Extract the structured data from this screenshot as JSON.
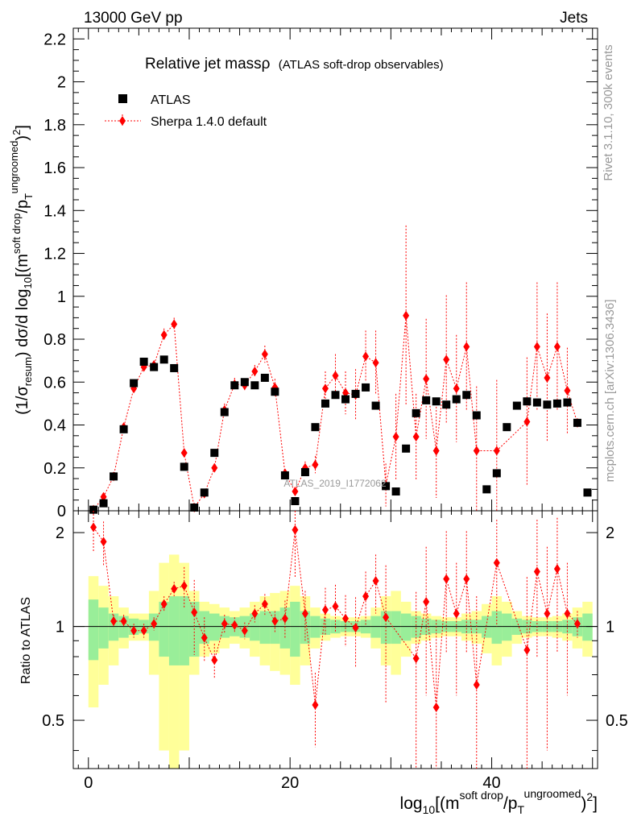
{
  "header": {
    "left": "13000 GeV pp",
    "right": "Jets"
  },
  "side_labels": {
    "rivet": "Rivet 3.1.10,  300k events",
    "mcplots": "mcplots.cern.ch [arXiv:1306.3436]"
  },
  "watermark": "ATLAS_2019_I1772062",
  "chart_data": {
    "type": "scatter",
    "title": "Relative jet massρ",
    "subtitle": "(ATLAS soft-drop observables)",
    "xlim": [
      -1.5,
      50.5
    ],
    "main_ylim": [
      0,
      2.25
    ],
    "ratio_ylim": [
      0.35,
      2.35
    ],
    "x_ticks": [
      "0",
      "20",
      "40"
    ],
    "main_y_ticks": [
      "0",
      "0.2",
      "0.4",
      "0.6",
      "0.8",
      "1",
      "1.2",
      "1.4",
      "1.6",
      "1.8",
      "2",
      "2.2"
    ],
    "ratio_y_ticks": [
      "0.5",
      "1",
      "2"
    ],
    "ylabel_main": "(1/σresum) dσ/d log10[(m soft drop/pT ungroomed)2]",
    "ylabel_ratio": "Ratio to ATLAS",
    "xlabel": "log10[(m soft drop/pT ungroomed)2]",
    "legend": [
      {
        "name": "ATLAS",
        "marker": "square",
        "color": "#000000"
      },
      {
        "name": "Sherpa 1.4.0 default",
        "marker": "diamond",
        "color": "#ff0000"
      }
    ],
    "x": [
      0.5,
      1.5,
      2.5,
      3.5,
      4.5,
      5.5,
      6.5,
      7.5,
      8.5,
      9.5,
      10.5,
      11.5,
      12.5,
      13.5,
      14.5,
      15.5,
      16.5,
      17.5,
      18.5,
      19.5,
      20.5,
      21.5,
      22.5,
      23.5,
      24.5,
      25.5,
      26.5,
      27.5,
      28.5,
      29.5,
      30.5,
      31.5,
      32.5,
      33.5,
      34.5,
      35.5,
      36.5,
      37.5,
      38.5,
      39.5,
      40.5,
      41.5,
      42.5,
      43.5,
      44.5,
      45.5,
      46.5,
      47.5,
      48.5,
      49.5
    ],
    "series": [
      {
        "name": "ATLAS",
        "values": [
          0.005,
          0.035,
          0.16,
          0.38,
          0.595,
          0.695,
          0.67,
          0.705,
          0.665,
          0.205,
          0.015,
          0.085,
          0.27,
          0.46,
          0.585,
          0.6,
          0.585,
          0.62,
          0.555,
          0.165,
          0.045,
          0.18,
          0.39,
          0.5,
          0.54,
          0.52,
          0.545,
          0.575,
          0.49,
          0.115,
          0.09,
          0.29,
          0.455,
          0.515,
          0.51,
          0.495,
          0.52,
          0.54,
          0.445,
          0.1,
          0.175,
          0.39,
          0.49,
          0.51,
          0.505,
          0.495,
          0.5,
          0.505,
          0.41,
          0.085
        ]
      },
      {
        "name": "Sherpa 1.4.0 default",
        "x": [
          0.5,
          1.5,
          2.5,
          3.5,
          4.5,
          5.5,
          6.5,
          7.5,
          8.5,
          9.5,
          10.5,
          11.5,
          12.5,
          13.5,
          14.5,
          15.5,
          16.5,
          17.5,
          18.5,
          19.5,
          20.5,
          21.5,
          22.5,
          23.5,
          24.5,
          25.5,
          26.5,
          27.5,
          28.5,
          29.5,
          30.5,
          31.5,
          32.5,
          33.5,
          34.5,
          35.5,
          36.5,
          37.5,
          38.5,
          40.5,
          43.5,
          44.5,
          45.5,
          46.5,
          47.5,
          48.5
        ],
        "values": [
          0.005,
          0.065,
          0.16,
          0.39,
          0.57,
          0.67,
          0.68,
          0.82,
          0.87,
          0.27,
          0.015,
          0.08,
          0.2,
          0.47,
          0.59,
          0.585,
          0.65,
          0.73,
          0.575,
          0.175,
          0.09,
          0.2,
          0.215,
          0.57,
          0.63,
          0.55,
          0.54,
          0.72,
          0.69,
          0.12,
          0.345,
          0.91,
          0.345,
          0.615,
          0.28,
          0.705,
          0.57,
          0.765,
          0.28,
          0.28,
          0.415,
          0.765,
          0.62,
          0.765,
          0.56,
          0.41
        ],
        "err": [
          0,
          0.01,
          0.015,
          0.02,
          0.02,
          0.02,
          0.02,
          0.03,
          0.03,
          0.02,
          0.01,
          0.01,
          0.02,
          0.03,
          0.03,
          0.03,
          0.03,
          0.04,
          0.04,
          0.02,
          0.02,
          0.03,
          0.04,
          0.08,
          0.1,
          0.1,
          0.12,
          0.12,
          0.15,
          0.1,
          0.2,
          0.42,
          0.2,
          0.28,
          0.22,
          0.3,
          0.25,
          0.3,
          0.3,
          0.33,
          0.3,
          0.3,
          0.3,
          0.3,
          0.2,
          0.02
        ]
      }
    ],
    "ratio_series": {
      "name": "Sherpa / ATLAS",
      "x": [
        0.5,
        1.5,
        2.5,
        3.5,
        4.5,
        5.5,
        6.5,
        7.5,
        8.5,
        9.5,
        10.5,
        11.5,
        12.5,
        13.5,
        14.5,
        15.5,
        16.5,
        17.5,
        18.5,
        19.5,
        20.5,
        21.5,
        22.5,
        23.5,
        24.5,
        25.5,
        26.5,
        27.5,
        28.5,
        29.5,
        32.5,
        33.5,
        34.5,
        35.5,
        36.5,
        37.5,
        38.5,
        40.5,
        43.5,
        44.5,
        45.5,
        46.5,
        47.5,
        48.5
      ],
      "values": [
        2.08,
        1.87,
        1.04,
        1.04,
        0.97,
        0.97,
        1.02,
        1.18,
        1.32,
        1.35,
        1.11,
        0.92,
        0.78,
        1.02,
        1.01,
        0.97,
        1.1,
        1.18,
        1.04,
        1.06,
        2.04,
        1.1,
        0.56,
        1.13,
        1.16,
        1.06,
        0.99,
        1.25,
        1.4,
        1.07,
        0.79,
        1.2,
        0.55,
        1.42,
        1.1,
        1.42,
        0.65,
        1.6,
        0.84,
        1.5,
        1.1,
        1.53,
        1.1,
        1.02
      ],
      "err": [
        0.35,
        0.3,
        0.05,
        0.05,
        0.05,
        0.05,
        0.05,
        0.07,
        0.07,
        0.2,
        0.3,
        0.15,
        0.1,
        0.07,
        0.06,
        0.06,
        0.07,
        0.09,
        0.08,
        0.15,
        0.6,
        0.2,
        0.15,
        0.2,
        0.2,
        0.2,
        0.25,
        0.25,
        0.3,
        0.5,
        0.5,
        0.6,
        0.5,
        0.6,
        0.5,
        0.6,
        0.6,
        0.6,
        0.6,
        0.7,
        0.7,
        0.7,
        0.5,
        0.1
      ]
    },
    "uncertainty_bands": {
      "inner_color": "#99ee99",
      "outer_color": "#ffff99",
      "x": [
        0.5,
        1.5,
        2.5,
        3.5,
        4.5,
        5.5,
        6.5,
        7.5,
        8.5,
        9.5,
        10.5,
        11.5,
        12.5,
        13.5,
        14.5,
        15.5,
        16.5,
        17.5,
        18.5,
        19.5,
        20.5,
        21.5,
        22.5,
        23.5,
        24.5,
        25.5,
        26.5,
        27.5,
        28.5,
        29.5,
        30.5,
        31.5,
        32.5,
        33.5,
        34.5,
        35.5,
        36.5,
        37.5,
        38.5,
        39.5,
        40.5,
        41.5,
        42.5,
        43.5,
        44.5,
        45.5,
        46.5,
        47.5,
        48.5,
        49.5
      ],
      "inner": [
        0.22,
        0.15,
        0.1,
        0.08,
        0.06,
        0.05,
        0.1,
        0.2,
        0.25,
        0.25,
        0.2,
        0.12,
        0.1,
        0.08,
        0.07,
        0.08,
        0.1,
        0.12,
        0.12,
        0.15,
        0.2,
        0.12,
        0.08,
        0.06,
        0.05,
        0.04,
        0.04,
        0.05,
        0.08,
        0.12,
        0.12,
        0.1,
        0.08,
        0.06,
        0.05,
        0.04,
        0.04,
        0.05,
        0.05,
        0.08,
        0.12,
        0.1,
        0.06,
        0.05,
        0.04,
        0.04,
        0.04,
        0.05,
        0.07,
        0.1
      ],
      "outer": [
        0.45,
        0.35,
        0.25,
        0.15,
        0.1,
        0.1,
        0.3,
        0.6,
        0.7,
        0.6,
        0.3,
        0.2,
        0.18,
        0.15,
        0.12,
        0.15,
        0.2,
        0.25,
        0.28,
        0.3,
        0.35,
        0.25,
        0.15,
        0.1,
        0.08,
        0.07,
        0.07,
        0.08,
        0.15,
        0.25,
        0.3,
        0.2,
        0.12,
        0.1,
        0.08,
        0.07,
        0.07,
        0.1,
        0.12,
        0.18,
        0.25,
        0.2,
        0.12,
        0.08,
        0.07,
        0.07,
        0.08,
        0.1,
        0.15,
        0.2
      ]
    }
  }
}
